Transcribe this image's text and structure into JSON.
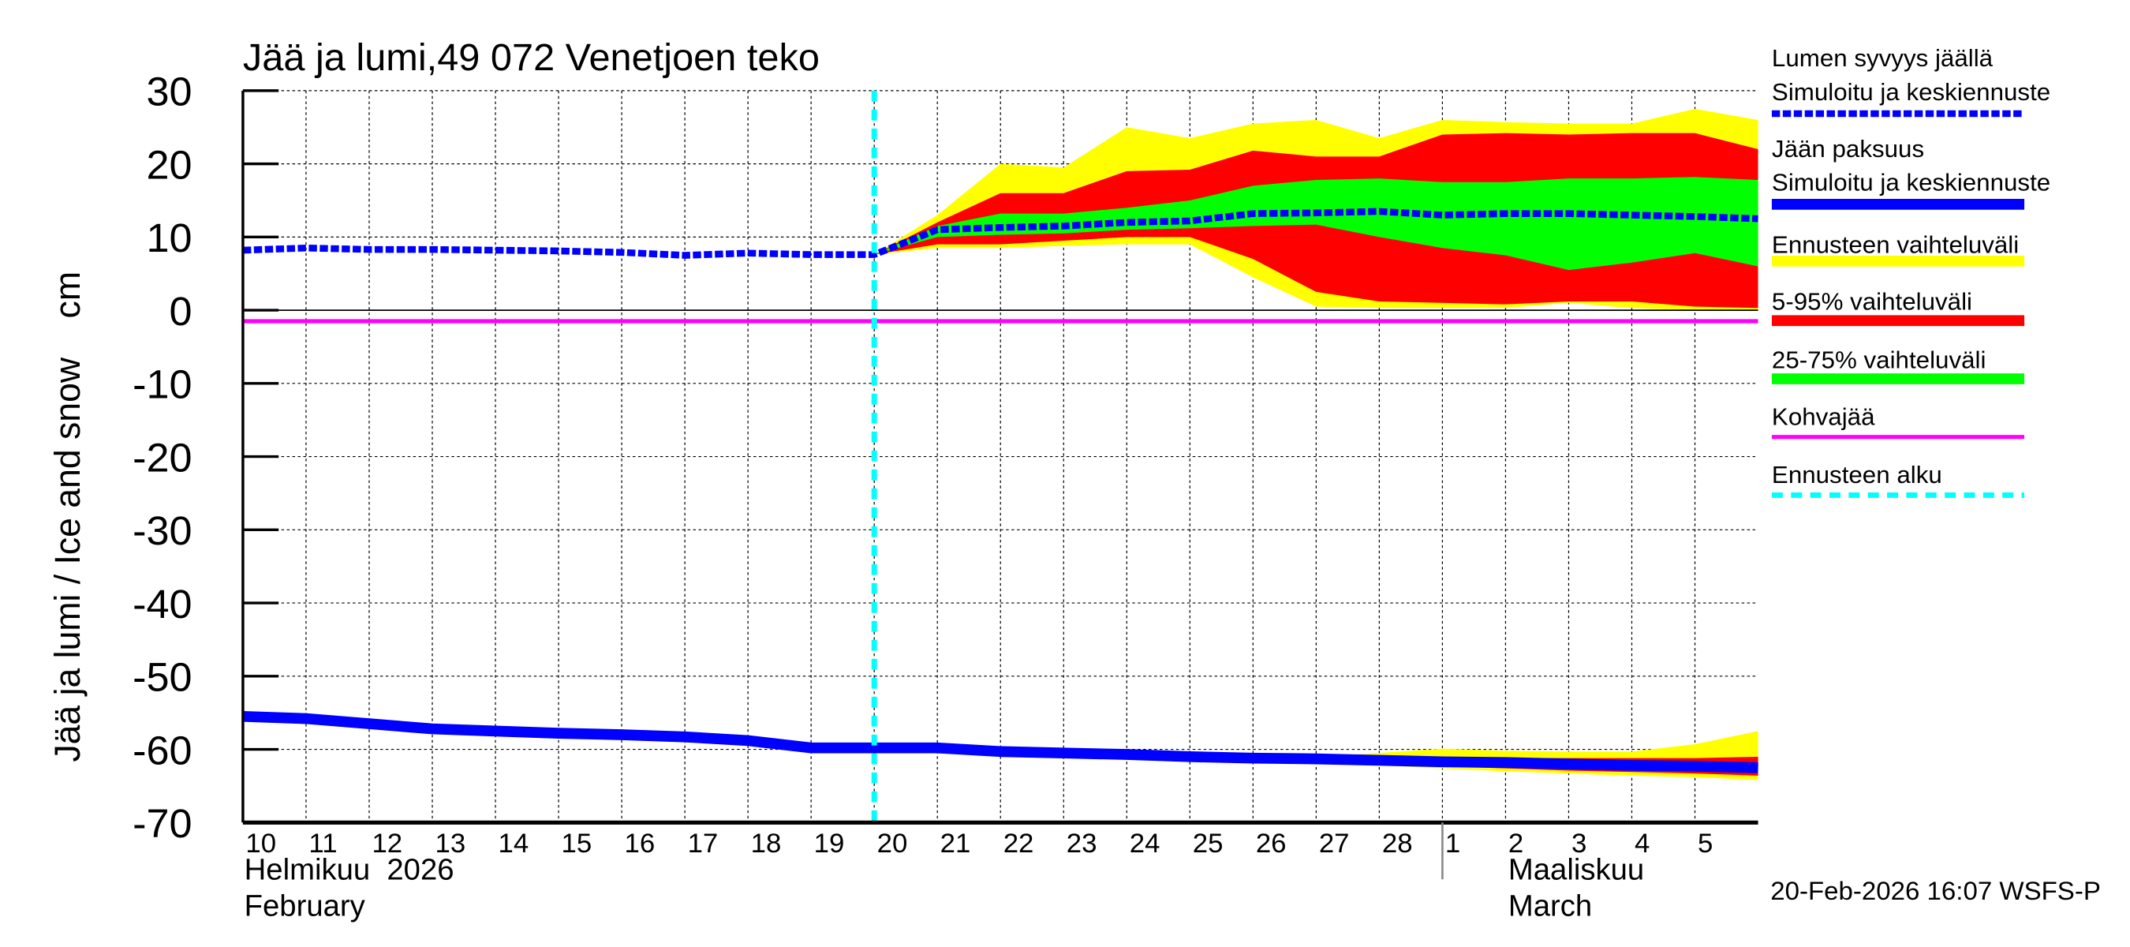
{
  "chart_data": {
    "type": "area",
    "title": "Jää ja lumi,49 072 Venetjoen teko",
    "ylabel": "Jää ja lumi / Ice and snow    cm",
    "ylim": [
      -70,
      30
    ],
    "yticks": [
      30,
      20,
      10,
      0,
      -10,
      -20,
      -30,
      -40,
      -50,
      -60,
      -70
    ],
    "grid": true,
    "legend_position": "right",
    "x_day_labels": [
      "10",
      "11",
      "12",
      "13",
      "14",
      "15",
      "16",
      "17",
      "18",
      "19",
      "20",
      "21",
      "22",
      "23",
      "24",
      "25",
      "26",
      "27",
      "28",
      "1",
      "2",
      "3",
      "4",
      "5"
    ],
    "x_month_labels": {
      "feb_fi": "Helmikuu  2026",
      "feb_en": "February",
      "mar_fi": "Maaliskuu",
      "mar_en": "March"
    },
    "x_start": "2026-02-10",
    "x_end": "2026-03-06",
    "forecast_start": "2026-02-20",
    "kohvajaa_level": -1.5,
    "snow": {
      "x": [
        "2026-02-10",
        "2026-02-11",
        "2026-02-12",
        "2026-02-13",
        "2026-02-14",
        "2026-02-15",
        "2026-02-16",
        "2026-02-17",
        "2026-02-18",
        "2026-02-19",
        "2026-02-20",
        "2026-02-21",
        "2026-02-22",
        "2026-02-23",
        "2026-02-24",
        "2026-02-25",
        "2026-02-26",
        "2026-02-27",
        "2026-02-28",
        "2026-03-01",
        "2026-03-02",
        "2026-03-03",
        "2026-03-04",
        "2026-03-05",
        "2026-03-06"
      ],
      "median": [
        8.2,
        8.5,
        8.3,
        8.3,
        8.2,
        8.1,
        7.9,
        7.5,
        7.8,
        7.6,
        7.6,
        11,
        11.3,
        11.5,
        12,
        12.2,
        13.2,
        13.3,
        13.5,
        13,
        13.2,
        13.2,
        13,
        12.8,
        12.5
      ],
      "band_min": [
        null,
        null,
        null,
        null,
        null,
        null,
        null,
        null,
        null,
        null,
        7.6,
        8.5,
        8.5,
        8.8,
        9,
        9,
        4.5,
        0.5,
        0.3,
        0.3,
        0.3,
        1,
        0.3,
        0,
        0
      ],
      "band_max": [
        null,
        null,
        null,
        null,
        null,
        null,
        null,
        null,
        null,
        null,
        7.6,
        13,
        20,
        19.5,
        25,
        23.5,
        25.5,
        26,
        23.5,
        26,
        25.7,
        25.5,
        25.5,
        27.5,
        26
      ],
      "p5": [
        null,
        null,
        null,
        null,
        null,
        null,
        null,
        null,
        null,
        null,
        7.6,
        9,
        9,
        9.5,
        10,
        10,
        7,
        2.5,
        1.2,
        1,
        0.8,
        1.2,
        1.2,
        0.5,
        0.3
      ],
      "p95": [
        null,
        null,
        null,
        null,
        null,
        null,
        null,
        null,
        null,
        null,
        7.6,
        12,
        16,
        16,
        19,
        19.2,
        21.8,
        21,
        21,
        24,
        24.2,
        24,
        24.2,
        24.2,
        22
      ],
      "p25": [
        null,
        null,
        null,
        null,
        null,
        null,
        null,
        null,
        null,
        null,
        7.6,
        10,
        10.3,
        10.5,
        11,
        11.2,
        11.5,
        11.7,
        10,
        8.5,
        7.5,
        5.5,
        6.5,
        7.8,
        6
      ],
      "p75": [
        null,
        null,
        null,
        null,
        null,
        null,
        null,
        null,
        null,
        null,
        7.6,
        11.5,
        13.2,
        13.2,
        14,
        15,
        17,
        17.8,
        18,
        17.5,
        17.5,
        18,
        18,
        18.2,
        17.8
      ]
    },
    "ice": {
      "median": [
        -55.5,
        -55.8,
        -56.5,
        -57.2,
        -57.5,
        -57.8,
        -58,
        -58.3,
        -58.8,
        -59.8,
        -59.8,
        -59.8,
        -60.3,
        -60.5,
        -60.7,
        -61,
        -61.2,
        -61.3,
        -61.5,
        -61.7,
        -61.8,
        -62,
        -62.2,
        -62.3,
        -62.5
      ],
      "band_min": [
        null,
        null,
        null,
        null,
        null,
        null,
        null,
        null,
        null,
        null,
        -59.8,
        -59.8,
        -60.3,
        -60.5,
        -60.8,
        -61.2,
        -61.5,
        -61.8,
        -62.2,
        -62.6,
        -63,
        -63.3,
        -63.6,
        -63.8,
        -64.2
      ],
      "band_max": [
        null,
        null,
        null,
        null,
        null,
        null,
        null,
        null,
        null,
        null,
        -59.8,
        -59.8,
        -60.3,
        -60.5,
        -60.6,
        -60.8,
        -61,
        -61,
        -60.5,
        -59.9,
        -60.2,
        -60.3,
        -60.3,
        -59.3,
        -57.5
      ],
      "p5": [
        null,
        null,
        null,
        null,
        null,
        null,
        null,
        null,
        null,
        null,
        -59.8,
        -59.8,
        -60.3,
        -60.5,
        -60.7,
        -61.1,
        -61.4,
        -61.7,
        -62,
        -62.3,
        -62.6,
        -62.9,
        -63.1,
        -63.3,
        -63.6
      ],
      "p95": [
        null,
        null,
        null,
        null,
        null,
        null,
        null,
        null,
        null,
        null,
        -59.8,
        -59.8,
        -60.3,
        -60.5,
        -60.6,
        -60.9,
        -61,
        -61.1,
        -61.1,
        -61.1,
        -61.2,
        -61.2,
        -61.2,
        -61.2,
        -61
      ],
      "p25": [
        null,
        null,
        null,
        null,
        null,
        null,
        null,
        null,
        null,
        null,
        -59.8,
        -59.8,
        -60.3,
        -60.5,
        -60.7,
        -61,
        -61.2,
        -61.4,
        -61.6,
        -61.9,
        -62.1,
        -62.3,
        -62.5,
        -62.6,
        -62.8
      ],
      "p75": [
        null,
        null,
        null,
        null,
        null,
        null,
        null,
        null,
        null,
        null,
        -59.8,
        -59.8,
        -60.3,
        -60.5,
        -60.7,
        -61,
        -61.1,
        -61.2,
        -61.3,
        -61.4,
        -61.5,
        -61.6,
        -61.7,
        -61.8,
        -61.8
      ]
    },
    "colors": {
      "snow": "#0000ff",
      "ice": "#0000ff",
      "band": "#ffff00",
      "p5_95": "#ff0000",
      "p25_75": "#00ff00",
      "kohvajaa": "#ff00ff",
      "forecast_start": "#00ffff"
    }
  },
  "legend": {
    "snow_title": "Lumen syvyys jäällä",
    "snow_sub": "Simuloitu ja keskiennuste",
    "ice_title": "Jään paksuus",
    "ice_sub": "Simuloitu ja keskiennuste",
    "band": "Ennusteen vaihteluväli",
    "p5_95": "5-95% vaihteluväli",
    "p25_75": "25-75% vaihteluväli",
    "kohvajaa": "Kohvajää",
    "forecast_start": "Ennusteen alku"
  },
  "footer": "20-Feb-2026 16:07 WSFS-P"
}
